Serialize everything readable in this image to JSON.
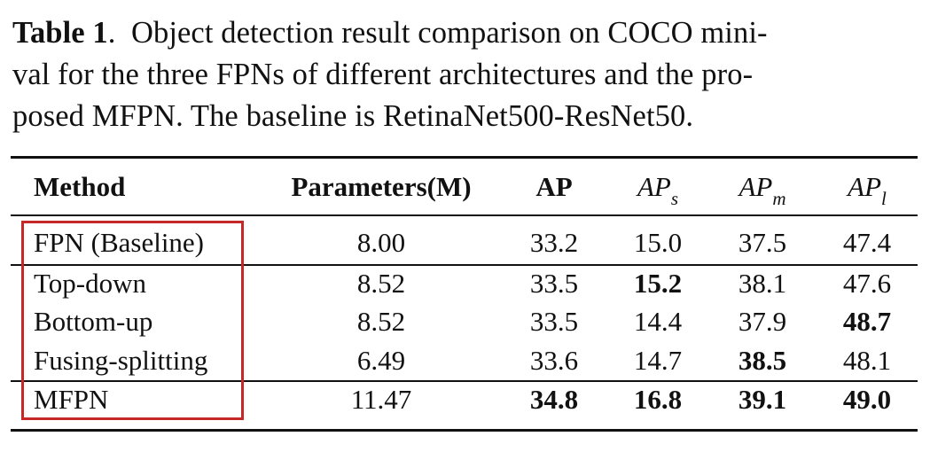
{
  "caption": {
    "label": "Table 1",
    "separator": ".",
    "lines": [
      "Object detection result comparison on COCO mini-",
      "val for the three FPNs of different architectures and the pro-",
      "posed MFPN. The baseline is RetinaNet500-ResNet50."
    ]
  },
  "table": {
    "headers": {
      "method": "Method",
      "params": "Parameters(M)",
      "ap": "AP",
      "aps_base": "AP",
      "aps_sub": "s",
      "apm_base": "AP",
      "apm_sub": "m",
      "apl_base": "AP",
      "apl_sub": "l"
    },
    "rows": [
      {
        "method": "FPN (Baseline)",
        "params": "8.00",
        "ap": "33.2",
        "aps": "15.0",
        "apm": "37.5",
        "apl": "47.4"
      },
      {
        "method": "Top-down",
        "params": "8.52",
        "ap": "33.5",
        "aps": "15.2",
        "apm": "38.1",
        "apl": "47.6"
      },
      {
        "method": "Bottom-up",
        "params": "8.52",
        "ap": "33.5",
        "aps": "14.4",
        "apm": "37.9",
        "apl": "48.7"
      },
      {
        "method": "Fusing-splitting",
        "params": "6.49",
        "ap": "33.6",
        "aps": "14.7",
        "apm": "38.5",
        "apl": "48.1"
      },
      {
        "method": "MFPN",
        "params": "11.47",
        "ap": "34.8",
        "aps": "16.8",
        "apm": "39.1",
        "apl": "49.0"
      }
    ],
    "bold_cells": [
      "1.aps",
      "2.apl",
      "3.apm",
      "4.ap",
      "4.aps",
      "4.apm",
      "4.apl"
    ]
  },
  "colors": {
    "highlight_box": "#c62828",
    "text": "#111111"
  }
}
